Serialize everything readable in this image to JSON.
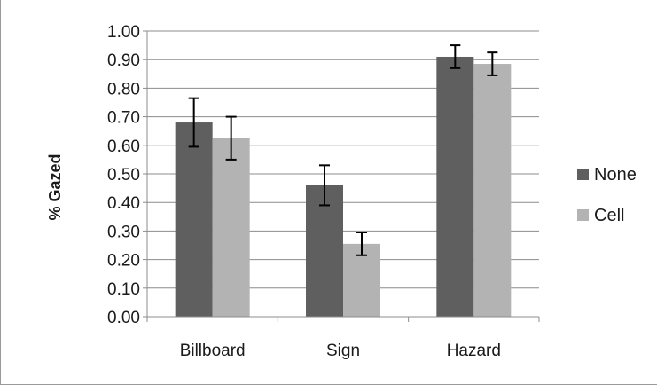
{
  "chart_data": {
    "type": "bar",
    "title": "",
    "xlabel": "",
    "ylabel": "% Gazed",
    "categories": [
      "Billboard",
      "Sign",
      "Hazard"
    ],
    "series": [
      {
        "name": "None",
        "color": "#5f5f5f",
        "values": [
          0.68,
          0.46,
          0.91
        ],
        "error": [
          0.085,
          0.07,
          0.04
        ]
      },
      {
        "name": "Cell",
        "color": "#b3b3b3",
        "values": [
          0.625,
          0.255,
          0.885
        ],
        "error": [
          0.075,
          0.04,
          0.04
        ]
      }
    ],
    "ylim": [
      0,
      1.0
    ],
    "yticks": [
      "0.00",
      "0.10",
      "0.20",
      "0.30",
      "0.40",
      "0.50",
      "0.60",
      "0.70",
      "0.80",
      "0.90",
      "1.00"
    ],
    "grid": true,
    "legend_position": "right"
  }
}
